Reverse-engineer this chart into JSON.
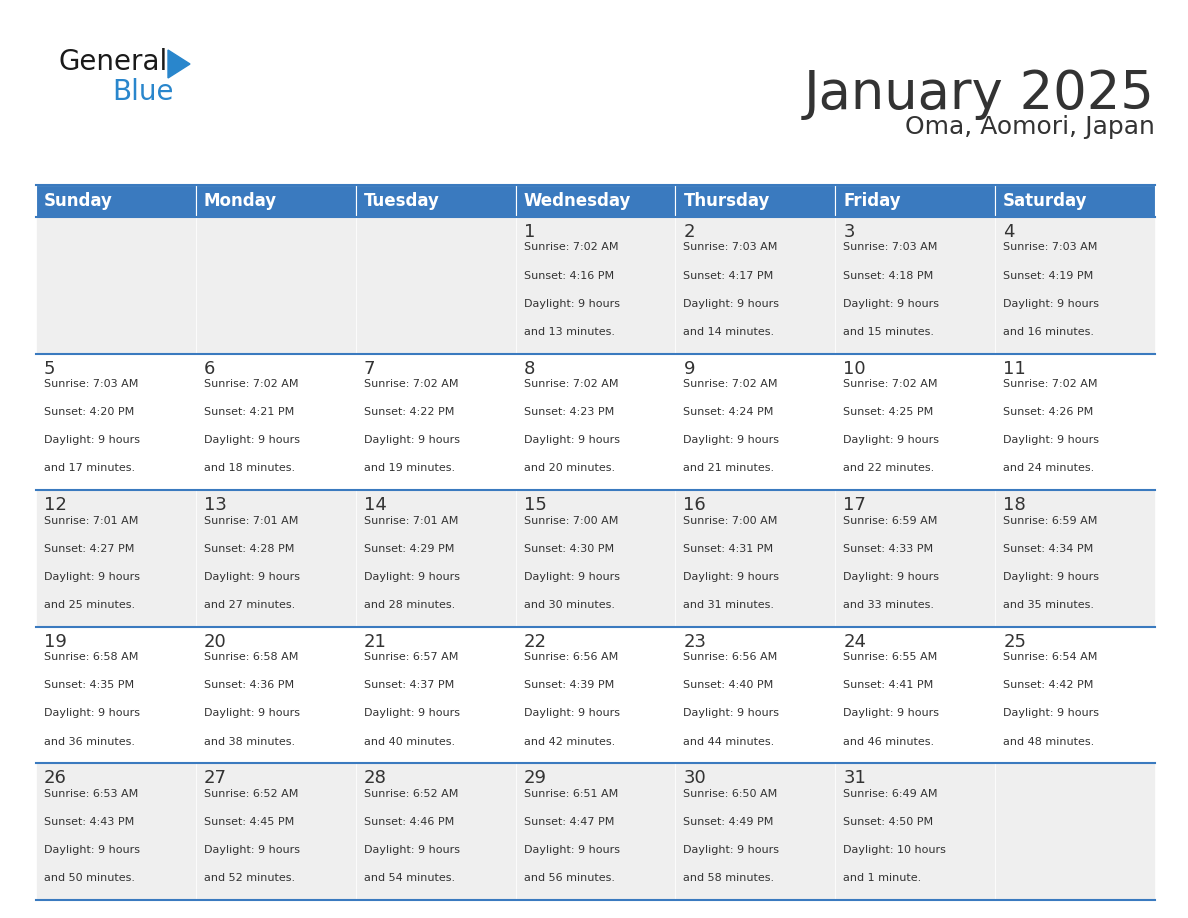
{
  "title": "January 2025",
  "subtitle": "Oma, Aomori, Japan",
  "header_bg": "#3a7abf",
  "header_text_color": "#ffffff",
  "cell_bg_odd": "#efefef",
  "cell_bg_even": "#ffffff",
  "day_names": [
    "Sunday",
    "Monday",
    "Tuesday",
    "Wednesday",
    "Thursday",
    "Friday",
    "Saturday"
  ],
  "days_data": [
    {
      "day": 1,
      "col": 3,
      "row": 0,
      "sunrise": "7:02 AM",
      "sunset": "4:16 PM",
      "daylight": "9 hours and 13 minutes."
    },
    {
      "day": 2,
      "col": 4,
      "row": 0,
      "sunrise": "7:03 AM",
      "sunset": "4:17 PM",
      "daylight": "9 hours and 14 minutes."
    },
    {
      "day": 3,
      "col": 5,
      "row": 0,
      "sunrise": "7:03 AM",
      "sunset": "4:18 PM",
      "daylight": "9 hours and 15 minutes."
    },
    {
      "day": 4,
      "col": 6,
      "row": 0,
      "sunrise": "7:03 AM",
      "sunset": "4:19 PM",
      "daylight": "9 hours and 16 minutes."
    },
    {
      "day": 5,
      "col": 0,
      "row": 1,
      "sunrise": "7:03 AM",
      "sunset": "4:20 PM",
      "daylight": "9 hours and 17 minutes."
    },
    {
      "day": 6,
      "col": 1,
      "row": 1,
      "sunrise": "7:02 AM",
      "sunset": "4:21 PM",
      "daylight": "9 hours and 18 minutes."
    },
    {
      "day": 7,
      "col": 2,
      "row": 1,
      "sunrise": "7:02 AM",
      "sunset": "4:22 PM",
      "daylight": "9 hours and 19 minutes."
    },
    {
      "day": 8,
      "col": 3,
      "row": 1,
      "sunrise": "7:02 AM",
      "sunset": "4:23 PM",
      "daylight": "9 hours and 20 minutes."
    },
    {
      "day": 9,
      "col": 4,
      "row": 1,
      "sunrise": "7:02 AM",
      "sunset": "4:24 PM",
      "daylight": "9 hours and 21 minutes."
    },
    {
      "day": 10,
      "col": 5,
      "row": 1,
      "sunrise": "7:02 AM",
      "sunset": "4:25 PM",
      "daylight": "9 hours and 22 minutes."
    },
    {
      "day": 11,
      "col": 6,
      "row": 1,
      "sunrise": "7:02 AM",
      "sunset": "4:26 PM",
      "daylight": "9 hours and 24 minutes."
    },
    {
      "day": 12,
      "col": 0,
      "row": 2,
      "sunrise": "7:01 AM",
      "sunset": "4:27 PM",
      "daylight": "9 hours and 25 minutes."
    },
    {
      "day": 13,
      "col": 1,
      "row": 2,
      "sunrise": "7:01 AM",
      "sunset": "4:28 PM",
      "daylight": "9 hours and 27 minutes."
    },
    {
      "day": 14,
      "col": 2,
      "row": 2,
      "sunrise": "7:01 AM",
      "sunset": "4:29 PM",
      "daylight": "9 hours and 28 minutes."
    },
    {
      "day": 15,
      "col": 3,
      "row": 2,
      "sunrise": "7:00 AM",
      "sunset": "4:30 PM",
      "daylight": "9 hours and 30 minutes."
    },
    {
      "day": 16,
      "col": 4,
      "row": 2,
      "sunrise": "7:00 AM",
      "sunset": "4:31 PM",
      "daylight": "9 hours and 31 minutes."
    },
    {
      "day": 17,
      "col": 5,
      "row": 2,
      "sunrise": "6:59 AM",
      "sunset": "4:33 PM",
      "daylight": "9 hours and 33 minutes."
    },
    {
      "day": 18,
      "col": 6,
      "row": 2,
      "sunrise": "6:59 AM",
      "sunset": "4:34 PM",
      "daylight": "9 hours and 35 minutes."
    },
    {
      "day": 19,
      "col": 0,
      "row": 3,
      "sunrise": "6:58 AM",
      "sunset": "4:35 PM",
      "daylight": "9 hours and 36 minutes."
    },
    {
      "day": 20,
      "col": 1,
      "row": 3,
      "sunrise": "6:58 AM",
      "sunset": "4:36 PM",
      "daylight": "9 hours and 38 minutes."
    },
    {
      "day": 21,
      "col": 2,
      "row": 3,
      "sunrise": "6:57 AM",
      "sunset": "4:37 PM",
      "daylight": "9 hours and 40 minutes."
    },
    {
      "day": 22,
      "col": 3,
      "row": 3,
      "sunrise": "6:56 AM",
      "sunset": "4:39 PM",
      "daylight": "9 hours and 42 minutes."
    },
    {
      "day": 23,
      "col": 4,
      "row": 3,
      "sunrise": "6:56 AM",
      "sunset": "4:40 PM",
      "daylight": "9 hours and 44 minutes."
    },
    {
      "day": 24,
      "col": 5,
      "row": 3,
      "sunrise": "6:55 AM",
      "sunset": "4:41 PM",
      "daylight": "9 hours and 46 minutes."
    },
    {
      "day": 25,
      "col": 6,
      "row": 3,
      "sunrise": "6:54 AM",
      "sunset": "4:42 PM",
      "daylight": "9 hours and 48 minutes."
    },
    {
      "day": 26,
      "col": 0,
      "row": 4,
      "sunrise": "6:53 AM",
      "sunset": "4:43 PM",
      "daylight": "9 hours and 50 minutes."
    },
    {
      "day": 27,
      "col": 1,
      "row": 4,
      "sunrise": "6:52 AM",
      "sunset": "4:45 PM",
      "daylight": "9 hours and 52 minutes."
    },
    {
      "day": 28,
      "col": 2,
      "row": 4,
      "sunrise": "6:52 AM",
      "sunset": "4:46 PM",
      "daylight": "9 hours and 54 minutes."
    },
    {
      "day": 29,
      "col": 3,
      "row": 4,
      "sunrise": "6:51 AM",
      "sunset": "4:47 PM",
      "daylight": "9 hours and 56 minutes."
    },
    {
      "day": 30,
      "col": 4,
      "row": 4,
      "sunrise": "6:50 AM",
      "sunset": "4:49 PM",
      "daylight": "9 hours and 58 minutes."
    },
    {
      "day": 31,
      "col": 5,
      "row": 4,
      "sunrise": "6:49 AM",
      "sunset": "4:50 PM",
      "daylight": "10 hours and 1 minute."
    }
  ],
  "num_rows": 5,
  "num_cols": 7,
  "logo_text_general": "General",
  "logo_text_blue": "Blue",
  "logo_color_general": "#1a1a1a",
  "logo_color_blue": "#2986cc",
  "logo_triangle_color": "#2986cc",
  "divider_color": "#3a7abf",
  "text_color": "#333333",
  "title_fontsize": 38,
  "subtitle_fontsize": 18,
  "day_header_fontsize": 12,
  "day_num_fontsize": 13,
  "cell_text_fontsize": 8
}
